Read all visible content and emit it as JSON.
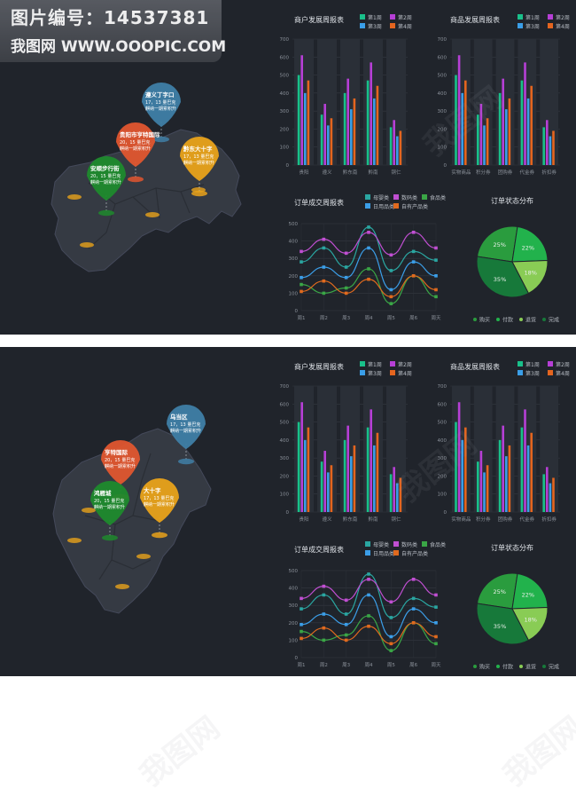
{
  "banner": {
    "line1": "图片编号：14537381",
    "line2": "我图网  WWW.OOOPIC.COM"
  },
  "watermark": "我图网",
  "colors": {
    "w1": "#19c08a",
    "w2": "#b63fd6",
    "w3": "#3a9ee8",
    "w4": "#e4651f",
    "line1": "#2aa6a1",
    "line2": "#c04fd2",
    "line3": "#3aa646",
    "line4": "#3b9ee8",
    "line5": "#e06a1e",
    "pie1": "#2a9c3e",
    "pie2": "#22b24c",
    "pie3": "#89cc55",
    "pie4": "#17793a"
  },
  "panels": [
    {
      "map": {
        "pins": [
          {
            "title": "遵义丁字口",
            "sub": "17，13 量巴克",
            "sub2": "麒纳一期累积升",
            "color": "#3f7fa6"
          },
          {
            "title": "贵阳市亨特国际",
            "sub": "20，15 量巴克",
            "sub2": "麒纳一期累积升",
            "color": "#e0562f"
          },
          {
            "title": "黔东大十字",
            "sub": "17，13 量巴克",
            "sub2": "麒纳一期累积升",
            "color": "#e9a21a"
          },
          {
            "title": "安顺步行街",
            "sub": "20，15 量巴克",
            "sub2": "麒纳一期累积升",
            "color": "#1f8a2d"
          }
        ]
      },
      "charts": [
        {
          "type": "bar",
          "title": "商户发展周报表",
          "legend": [
            "第1周",
            "第2周",
            "第3周",
            "第4周"
          ],
          "categories": [
            "贵阳",
            "遵义",
            "黔东南",
            "黔南",
            "铜仁"
          ],
          "series": [
            {
              "name": "第1周",
              "values": [
                500,
                280,
                400,
                470,
                210
              ]
            },
            {
              "name": "第2周",
              "values": [
                610,
                340,
                480,
                570,
                250
              ]
            },
            {
              "name": "第3周",
              "values": [
                400,
                220,
                310,
                370,
                160
              ]
            },
            {
              "name": "第4周",
              "values": [
                470,
                260,
                370,
                440,
                190
              ]
            }
          ],
          "ylim": [
            0,
            700
          ],
          "yticks": [
            0,
            100,
            200,
            300,
            400,
            500,
            600,
            700
          ]
        },
        {
          "type": "bar",
          "title": "商品发展周报表",
          "legend": [
            "第1周",
            "第2周",
            "第3周",
            "第4周"
          ],
          "categories": [
            "实物商品",
            "积分券",
            "团购券",
            "代金券",
            "折扣券"
          ],
          "series": [
            {
              "name": "第1周",
              "values": [
                500,
                280,
                400,
                470,
                210
              ]
            },
            {
              "name": "第2周",
              "values": [
                610,
                340,
                480,
                570,
                250
              ]
            },
            {
              "name": "第3周",
              "values": [
                400,
                220,
                310,
                370,
                160
              ]
            },
            {
              "name": "第4周",
              "values": [
                470,
                260,
                370,
                440,
                190
              ]
            }
          ],
          "ylim": [
            0,
            700
          ],
          "yticks": [
            0,
            100,
            200,
            300,
            400,
            500,
            600,
            700
          ]
        },
        {
          "type": "line",
          "title": "订单成交周报表",
          "legend": [
            "母婴类",
            "数码类",
            "食品类",
            "日用品类",
            "自有产品类"
          ],
          "categories": [
            "周1",
            "周2",
            "周3",
            "周4",
            "周5",
            "周6",
            "周天"
          ],
          "series": [
            {
              "name": "母婴类",
              "values": [
                280,
                360,
                250,
                480,
                230,
                340,
                290
              ]
            },
            {
              "name": "数码类",
              "values": [
                340,
                410,
                330,
                450,
                320,
                450,
                360
              ]
            },
            {
              "name": "食品类",
              "values": [
                150,
                100,
                130,
                240,
                40,
                200,
                80
              ]
            },
            {
              "name": "日用品类",
              "values": [
                190,
                250,
                190,
                360,
                120,
                280,
                200
              ]
            },
            {
              "name": "自有产品类",
              "values": [
                110,
                170,
                100,
                180,
                80,
                200,
                120
              ]
            }
          ],
          "ylim": [
            0,
            500
          ],
          "yticks": [
            0,
            100,
            200,
            300,
            400,
            500
          ]
        },
        {
          "type": "pie",
          "title": "订单状态分布",
          "legend": [
            "购买",
            "付款",
            "退货",
            "完成"
          ],
          "slices": [
            {
              "label": "购买",
              "value": 25
            },
            {
              "label": "付款",
              "value": 22
            },
            {
              "label": "退货",
              "value": 18
            },
            {
              "label": "完成",
              "value": 35
            }
          ]
        }
      ]
    },
    {
      "map": {
        "pins": [
          {
            "title": "乌当区",
            "sub": "17，13 量巴克",
            "sub2": "麒纳一期累积升",
            "color": "#3f7fa6"
          },
          {
            "title": "亨特国际",
            "sub": "20，15 量巴克",
            "sub2": "麒纳一期累积升",
            "color": "#e0562f"
          },
          {
            "title": "大十字",
            "sub": "17，13 量巴克",
            "sub2": "麒纳一期累积升",
            "color": "#e9a21a"
          },
          {
            "title": "鸿雁城",
            "sub": "20，15 量巴克",
            "sub2": "麒纳一期累积升",
            "color": "#1f8a2d"
          }
        ]
      },
      "charts": [
        {
          "type": "bar",
          "title": "商户发展周报表",
          "legend": [
            "第1周",
            "第2周",
            "第3周",
            "第4周"
          ],
          "categories": [
            "贵阳",
            "遵义",
            "黔东南",
            "黔南",
            "铜仁"
          ],
          "series": [
            {
              "name": "第1周",
              "values": [
                500,
                280,
                400,
                470,
                210
              ]
            },
            {
              "name": "第2周",
              "values": [
                610,
                340,
                480,
                570,
                250
              ]
            },
            {
              "name": "第3周",
              "values": [
                400,
                220,
                310,
                370,
                160
              ]
            },
            {
              "name": "第4周",
              "values": [
                470,
                260,
                370,
                440,
                190
              ]
            }
          ],
          "ylim": [
            0,
            700
          ],
          "yticks": [
            0,
            100,
            200,
            300,
            400,
            500,
            600,
            700
          ]
        },
        {
          "type": "bar",
          "title": "商品发展周报表",
          "legend": [
            "第1周",
            "第2周",
            "第3周",
            "第4周"
          ],
          "categories": [
            "实物商品",
            "积分券",
            "团购券",
            "代金券",
            "折扣券"
          ],
          "series": [
            {
              "name": "第1周",
              "values": [
                500,
                280,
                400,
                470,
                210
              ]
            },
            {
              "name": "第2周",
              "values": [
                610,
                340,
                480,
                570,
                250
              ]
            },
            {
              "name": "第3周",
              "values": [
                400,
                220,
                310,
                370,
                160
              ]
            },
            {
              "name": "第4周",
              "values": [
                470,
                260,
                370,
                440,
                190
              ]
            }
          ],
          "ylim": [
            0,
            700
          ],
          "yticks": [
            0,
            100,
            200,
            300,
            400,
            500,
            600,
            700
          ]
        },
        {
          "type": "line",
          "title": "订单成交周报表",
          "legend": [
            "母婴类",
            "数码类",
            "食品类",
            "日用品类",
            "自有产品类"
          ],
          "categories": [
            "周1",
            "周2",
            "周3",
            "周4",
            "周5",
            "周6",
            "周天"
          ],
          "series": [
            {
              "name": "母婴类",
              "values": [
                280,
                360,
                250,
                480,
                230,
                340,
                290
              ]
            },
            {
              "name": "数码类",
              "values": [
                340,
                410,
                330,
                450,
                320,
                450,
                360
              ]
            },
            {
              "name": "食品类",
              "values": [
                150,
                100,
                130,
                240,
                40,
                200,
                80
              ]
            },
            {
              "name": "日用品类",
              "values": [
                190,
                250,
                190,
                360,
                120,
                280,
                200
              ]
            },
            {
              "name": "自有产品类",
              "values": [
                110,
                170,
                100,
                180,
                80,
                200,
                120
              ]
            }
          ],
          "ylim": [
            0,
            500
          ],
          "yticks": [
            0,
            100,
            200,
            300,
            400,
            500
          ]
        },
        {
          "type": "pie",
          "title": "订单状态分布",
          "legend": [
            "购买",
            "付款",
            "退货",
            "完成"
          ],
          "slices": [
            {
              "label": "购买",
              "value": 25
            },
            {
              "label": "付款",
              "value": 22
            },
            {
              "label": "退货",
              "value": 18
            },
            {
              "label": "完成",
              "value": 35
            }
          ]
        }
      ]
    }
  ],
  "chart_data": [
    {
      "type": "bar",
      "title": "商户发展周报表",
      "categories": [
        "贵阳",
        "遵义",
        "黔东南",
        "黔南",
        "铜仁"
      ],
      "series": [
        {
          "name": "第1周",
          "values": [
            500,
            280,
            400,
            470,
            210
          ]
        },
        {
          "name": "第2周",
          "values": [
            610,
            340,
            480,
            570,
            250
          ]
        },
        {
          "name": "第3周",
          "values": [
            400,
            220,
            310,
            370,
            160
          ]
        },
        {
          "name": "第4周",
          "values": [
            470,
            260,
            370,
            440,
            190
          ]
        }
      ],
      "ylim": [
        0,
        700
      ]
    },
    {
      "type": "bar",
      "title": "商品发展周报表",
      "categories": [
        "实物商品",
        "积分券",
        "团购券",
        "代金券",
        "折扣券"
      ],
      "series": [
        {
          "name": "第1周",
          "values": [
            500,
            280,
            400,
            470,
            210
          ]
        },
        {
          "name": "第2周",
          "values": [
            610,
            340,
            480,
            570,
            250
          ]
        },
        {
          "name": "第3周",
          "values": [
            400,
            220,
            310,
            370,
            160
          ]
        },
        {
          "name": "第4周",
          "values": [
            470,
            260,
            370,
            440,
            190
          ]
        }
      ],
      "ylim": [
        0,
        700
      ]
    },
    {
      "type": "line",
      "title": "订单成交周报表",
      "categories": [
        "周1",
        "周2",
        "周3",
        "周4",
        "周5",
        "周6",
        "周天"
      ],
      "series": [
        {
          "name": "母婴类",
          "values": [
            280,
            360,
            250,
            480,
            230,
            340,
            290
          ]
        },
        {
          "name": "数码类",
          "values": [
            340,
            410,
            330,
            450,
            320,
            450,
            360
          ]
        },
        {
          "name": "食品类",
          "values": [
            150,
            100,
            130,
            240,
            40,
            200,
            80
          ]
        },
        {
          "name": "日用品类",
          "values": [
            190,
            250,
            190,
            360,
            120,
            280,
            200
          ]
        },
        {
          "name": "自有产品类",
          "values": [
            110,
            170,
            100,
            180,
            80,
            200,
            120
          ]
        }
      ],
      "ylim": [
        0,
        500
      ]
    },
    {
      "type": "pie",
      "title": "订单状态分布",
      "categories": [
        "购买",
        "付款",
        "退货",
        "完成"
      ],
      "values": [
        25,
        22,
        18,
        35
      ]
    }
  ]
}
